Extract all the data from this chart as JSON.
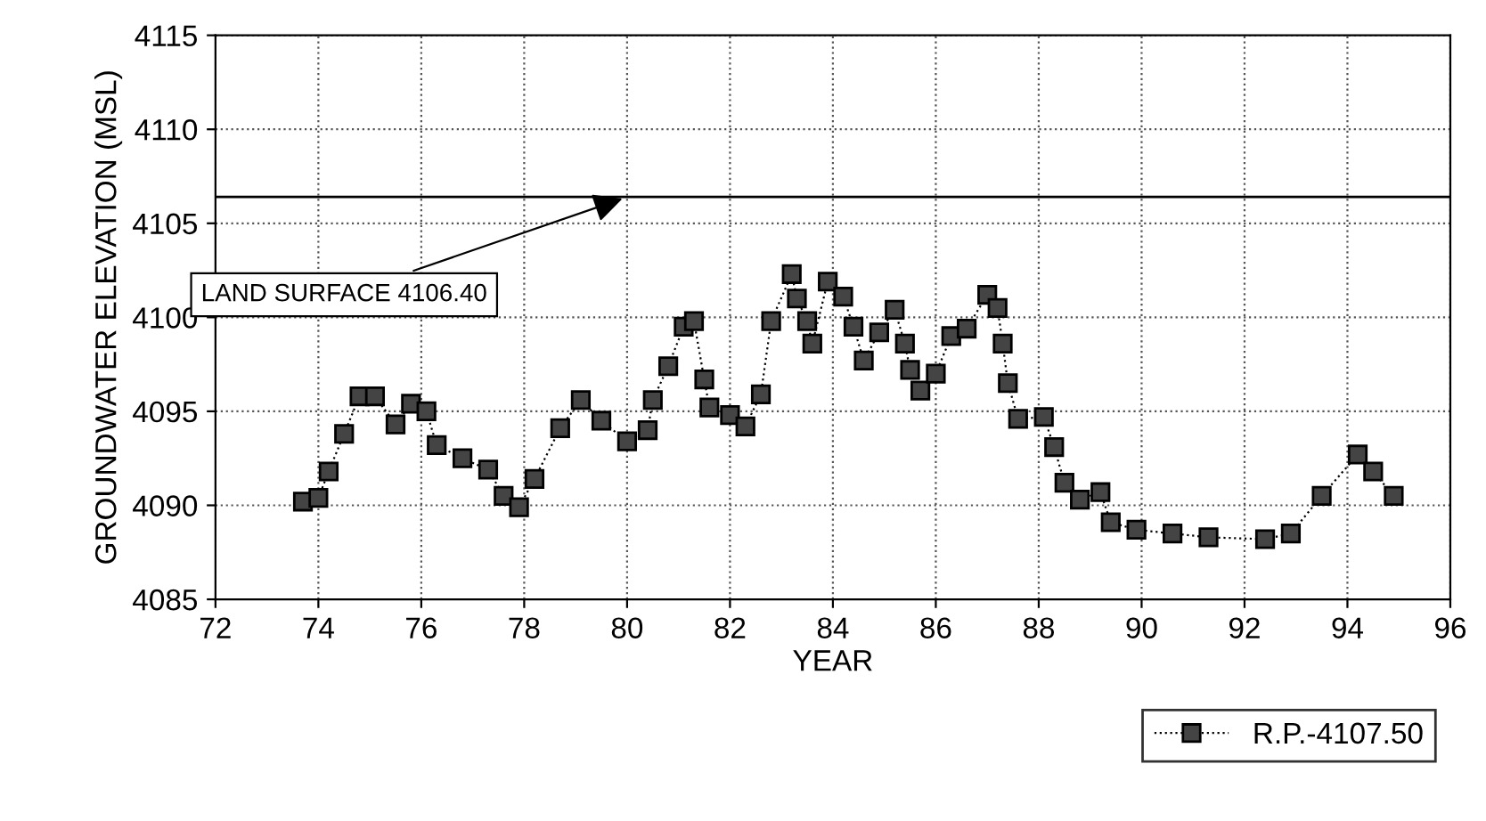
{
  "chart_data": {
    "type": "line",
    "xlabel": "YEAR",
    "ylabel": "GROUNDWATER ELEVATION (MSL)",
    "xlim": [
      72,
      96
    ],
    "xticks": [
      72,
      74,
      76,
      78,
      80,
      82,
      84,
      86,
      88,
      90,
      92,
      94,
      96
    ],
    "ylim": [
      4085,
      4115
    ],
    "yticks": [
      4085,
      4090,
      4095,
      4100,
      4105,
      4110,
      4115
    ],
    "grid": true,
    "legend": "bottom right",
    "marker": "square",
    "line_style": "dotted",
    "ref_lines": [
      {
        "axis": "y",
        "value": 4106.4,
        "color": "#000000"
      }
    ],
    "annotations": [
      {
        "text": "LAND SURFACE 4106.40",
        "x": 80,
        "y": 4106.4
      }
    ],
    "series": [
      {
        "name": "R.P.-4107.50",
        "color": "#444444",
        "x": [
          73.7,
          74.0,
          74.2,
          74.5,
          74.8,
          75.1,
          75.5,
          75.8,
          76.1,
          76.3,
          76.8,
          77.3,
          77.6,
          77.9,
          78.2,
          78.7,
          79.1,
          79.5,
          80.0,
          80.4,
          80.5,
          80.8,
          81.1,
          81.3,
          81.5,
          81.6,
          82.0,
          82.3,
          82.6,
          82.8,
          83.2,
          83.3,
          83.5,
          83.6,
          83.9,
          84.2,
          84.4,
          84.6,
          84.9,
          85.2,
          85.4,
          85.5,
          85.7,
          86.0,
          86.3,
          86.6,
          87.0,
          87.2,
          87.3,
          87.4,
          87.6,
          88.1,
          88.3,
          88.5,
          88.8,
          89.2,
          89.4,
          89.9,
          90.6,
          91.3,
          92.4,
          92.9,
          93.5,
          94.2,
          94.5,
          94.9
        ],
        "values": [
          4090.2,
          4090.4,
          4091.8,
          4093.8,
          4095.8,
          4095.8,
          4094.3,
          4095.4,
          4095.0,
          4093.2,
          4092.5,
          4091.9,
          4090.5,
          4089.9,
          4091.4,
          4094.1,
          4095.6,
          4094.5,
          4093.4,
          4094.0,
          4095.6,
          4097.4,
          4099.5,
          4099.8,
          4096.7,
          4095.2,
          4094.8,
          4094.2,
          4095.9,
          4099.8,
          4102.3,
          4101.0,
          4099.8,
          4098.6,
          4101.9,
          4101.1,
          4099.5,
          4097.7,
          4099.2,
          4100.4,
          4098.6,
          4097.2,
          4096.1,
          4097.0,
          4099.0,
          4099.4,
          4101.2,
          4100.5,
          4098.6,
          4096.5,
          4094.6,
          4094.7,
          4093.1,
          4091.2,
          4090.3,
          4090.7,
          4089.1,
          4088.7,
          4088.5,
          4088.3,
          4088.2,
          4088.5,
          4090.5,
          4092.7,
          4091.8,
          4090.5
        ]
      }
    ]
  }
}
